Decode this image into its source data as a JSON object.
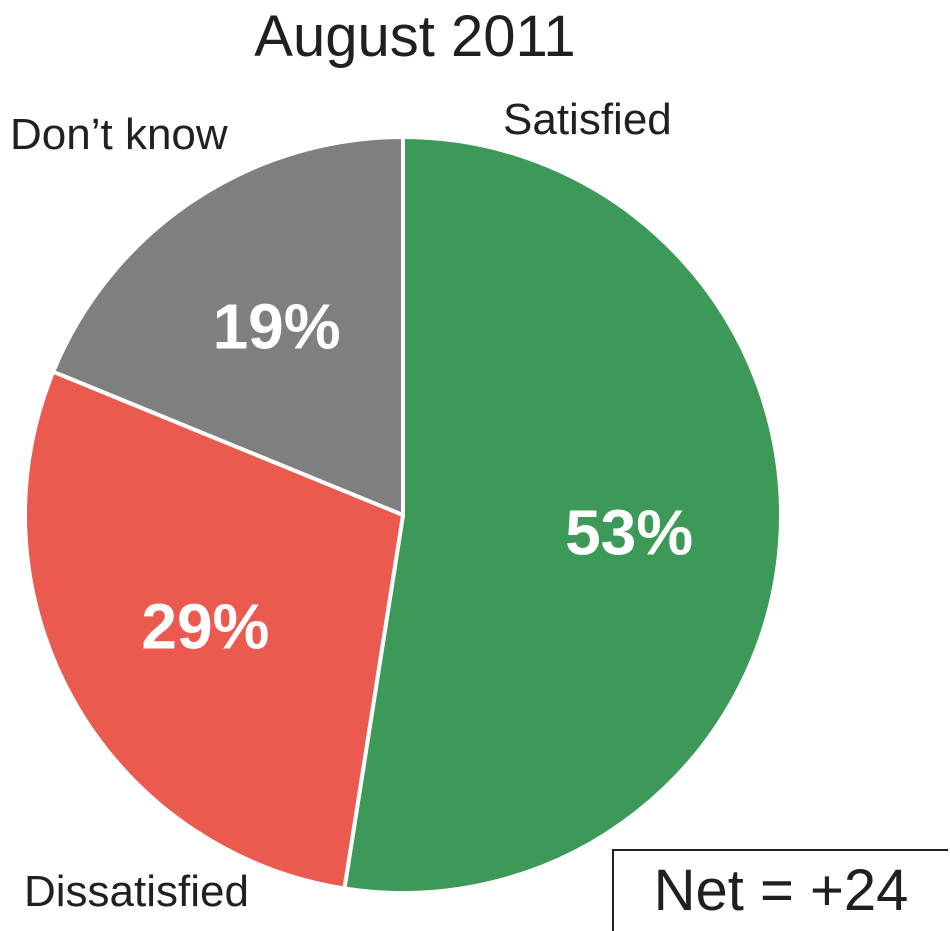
{
  "chart_data": {
    "type": "pie",
    "title": "August 2011",
    "slices": [
      {
        "label": "Satisfied",
        "value": 53,
        "value_label": "53%",
        "color": "#3d9958"
      },
      {
        "label": "Dissatisfied",
        "value": 29,
        "value_label": "29%",
        "color": "#eb5a4f"
      },
      {
        "label": "Don’t know",
        "value": 19,
        "value_label": "19%",
        "color": "#7f7f7f"
      }
    ],
    "start": "12 o'clock",
    "direction": "clockwise"
  },
  "annotation": "Net = +24"
}
